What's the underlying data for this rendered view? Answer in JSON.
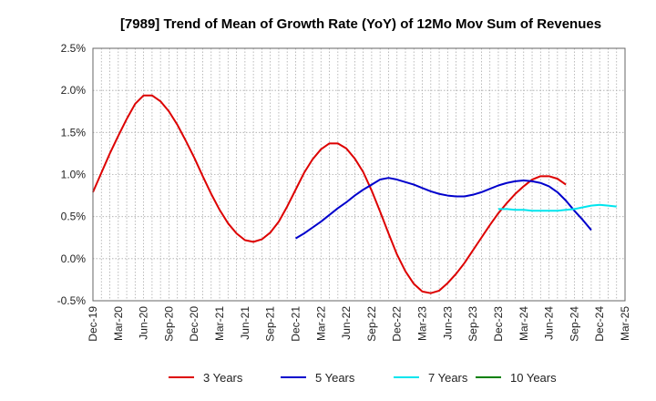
{
  "chart_data": {
    "type": "line",
    "title": "[7989]  Trend of Mean of Growth Rate (YoY) of 12Mo Mov Sum of Revenues",
    "xlabel": "",
    "ylabel": "",
    "ylim": [
      -0.5,
      2.5
    ],
    "y_ticks": [
      -0.5,
      0.0,
      0.5,
      1.0,
      1.5,
      2.0,
      2.5
    ],
    "y_tick_labels": [
      "-0.5%",
      "0.0%",
      "0.5%",
      "1.0%",
      "1.5%",
      "2.0%",
      "2.5%"
    ],
    "x_tick_labels": [
      "Dec-19",
      "Mar-20",
      "Jun-20",
      "Sep-20",
      "Dec-20",
      "Mar-21",
      "Jun-21",
      "Sep-21",
      "Dec-21",
      "Mar-22",
      "Jun-22",
      "Sep-22",
      "Dec-22",
      "Mar-23",
      "Jun-23",
      "Sep-23",
      "Dec-23",
      "Mar-24",
      "Jun-24",
      "Sep-24",
      "Dec-24",
      "Mar-25"
    ],
    "grid": true,
    "legend_position": "bottom",
    "series": [
      {
        "name": "3 Years",
        "color": "#dd0000",
        "start_index": 0,
        "values": [
          0.79,
          1.02,
          1.25,
          1.46,
          1.66,
          1.84,
          1.94,
          1.94,
          1.87,
          1.75,
          1.59,
          1.4,
          1.2,
          0.98,
          0.77,
          0.58,
          0.42,
          0.3,
          0.22,
          0.2,
          0.23,
          0.31,
          0.44,
          0.62,
          0.82,
          1.02,
          1.18,
          1.3,
          1.37,
          1.37,
          1.31,
          1.19,
          1.03,
          0.81,
          0.56,
          0.3,
          0.05,
          -0.15,
          -0.3,
          -0.39,
          -0.41,
          -0.38,
          -0.29,
          -0.18,
          -0.05,
          0.1,
          0.25,
          0.4,
          0.54,
          0.66,
          0.77,
          0.86,
          0.94,
          0.98,
          0.98,
          0.95,
          0.88
        ]
      },
      {
        "name": "5 Years",
        "color": "#0000cc",
        "start_index": 24,
        "values": [
          0.24,
          0.3,
          0.37,
          0.44,
          0.52,
          0.6,
          0.67,
          0.75,
          0.82,
          0.88,
          0.94,
          0.96,
          0.94,
          0.91,
          0.88,
          0.84,
          0.8,
          0.77,
          0.75,
          0.74,
          0.74,
          0.76,
          0.79,
          0.83,
          0.87,
          0.9,
          0.92,
          0.93,
          0.92,
          0.9,
          0.86,
          0.79,
          0.69,
          0.57,
          0.46,
          0.34
        ]
      },
      {
        "name": "7 Years",
        "color": "#00e5ee",
        "start_index": 48,
        "values": [
          0.59,
          0.59,
          0.58,
          0.58,
          0.57,
          0.57,
          0.57,
          0.57,
          0.58,
          0.59,
          0.61,
          0.63,
          0.64,
          0.63,
          0.62
        ]
      },
      {
        "name": "10 Years",
        "color": "#008000",
        "start_index": 0,
        "values": []
      }
    ]
  }
}
